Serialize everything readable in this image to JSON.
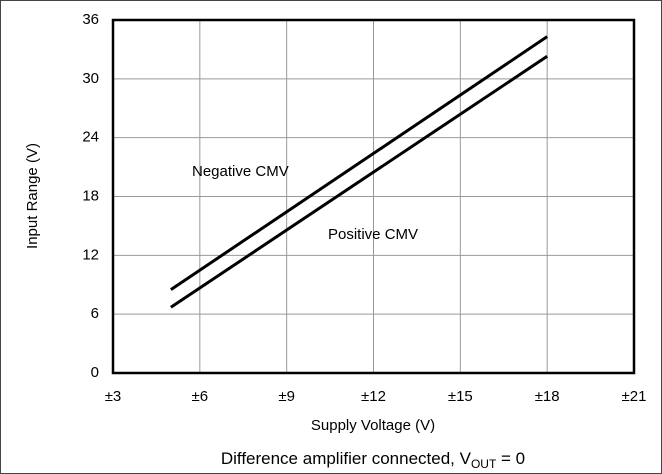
{
  "chart_data": {
    "type": "line",
    "x_label": "Supply Voltage (V)",
    "y_label": "Input Range (V)",
    "caption": [
      "Difference amplifier connected, V",
      "OUT",
      " = 0"
    ],
    "annotations": [
      "Negative CMV",
      "Positive CMV"
    ],
    "series": [
      {
        "name": "Negative CMV",
        "color": "#000000",
        "x": [
          5,
          18
        ],
        "values": [
          8.5,
          34.3
        ]
      },
      {
        "name": "Positive CMV",
        "color": "#000000",
        "x": [
          5,
          18
        ],
        "values": [
          6.7,
          32.3
        ]
      }
    ],
    "xlim": [
      3,
      21
    ],
    "xticks": [
      {
        "value": 3,
        "label": "±3"
      },
      {
        "value": 6,
        "label": "±6"
      },
      {
        "value": 9,
        "label": "±9"
      },
      {
        "value": 12,
        "label": "±12"
      },
      {
        "value": 15,
        "label": "±15"
      },
      {
        "value": 18,
        "label": "±18"
      },
      {
        "value": 21,
        "label": "±21"
      }
    ],
    "ylim": [
      0,
      36
    ],
    "yticks": [
      0,
      6,
      12,
      18,
      24,
      30,
      36
    ],
    "grid": true
  }
}
